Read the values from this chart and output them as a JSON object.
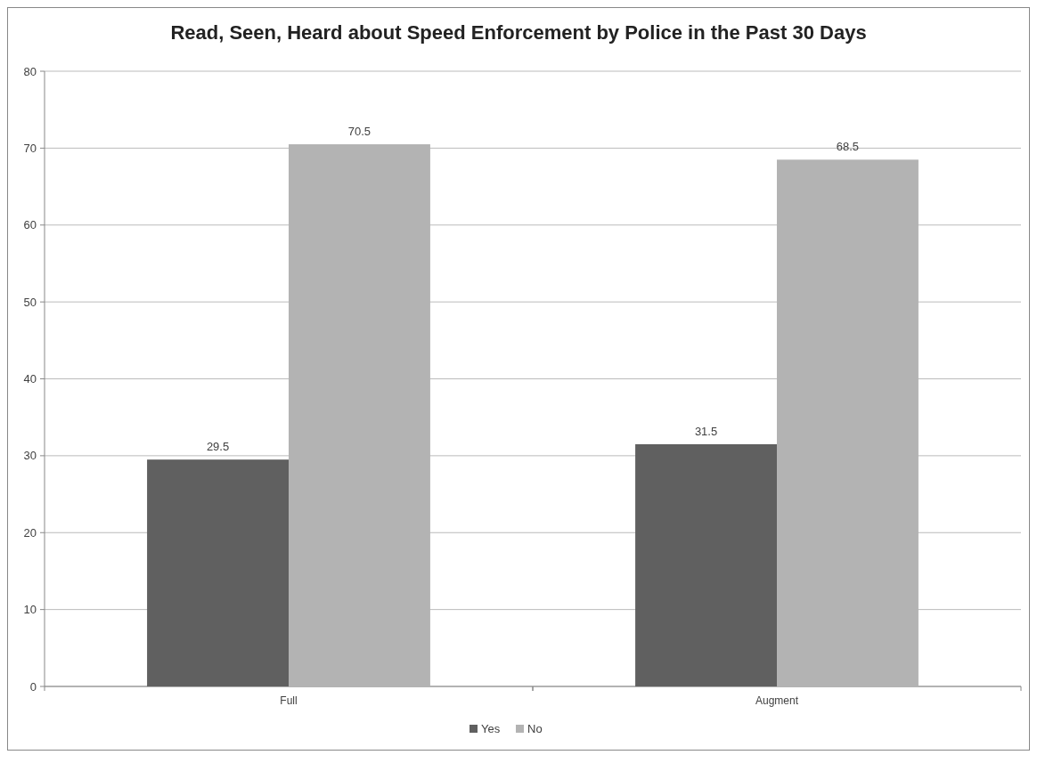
{
  "chart_data": {
    "type": "bar",
    "title": "Read, Seen, Heard about Speed Enforcement by Police in the Past 30 Days",
    "categories": [
      "Full",
      "Augment"
    ],
    "series": [
      {
        "name": "Yes",
        "color": "#606060",
        "values": [
          29.5,
          31.5
        ]
      },
      {
        "name": "No",
        "color": "#b3b3b3",
        "values": [
          70.5,
          68.5
        ]
      }
    ],
    "ylim": [
      0,
      80
    ],
    "yticks": [
      0,
      10,
      20,
      30,
      40,
      50,
      60,
      70,
      80
    ],
    "grid": "y",
    "legend": "bottom",
    "data_labels": true
  }
}
